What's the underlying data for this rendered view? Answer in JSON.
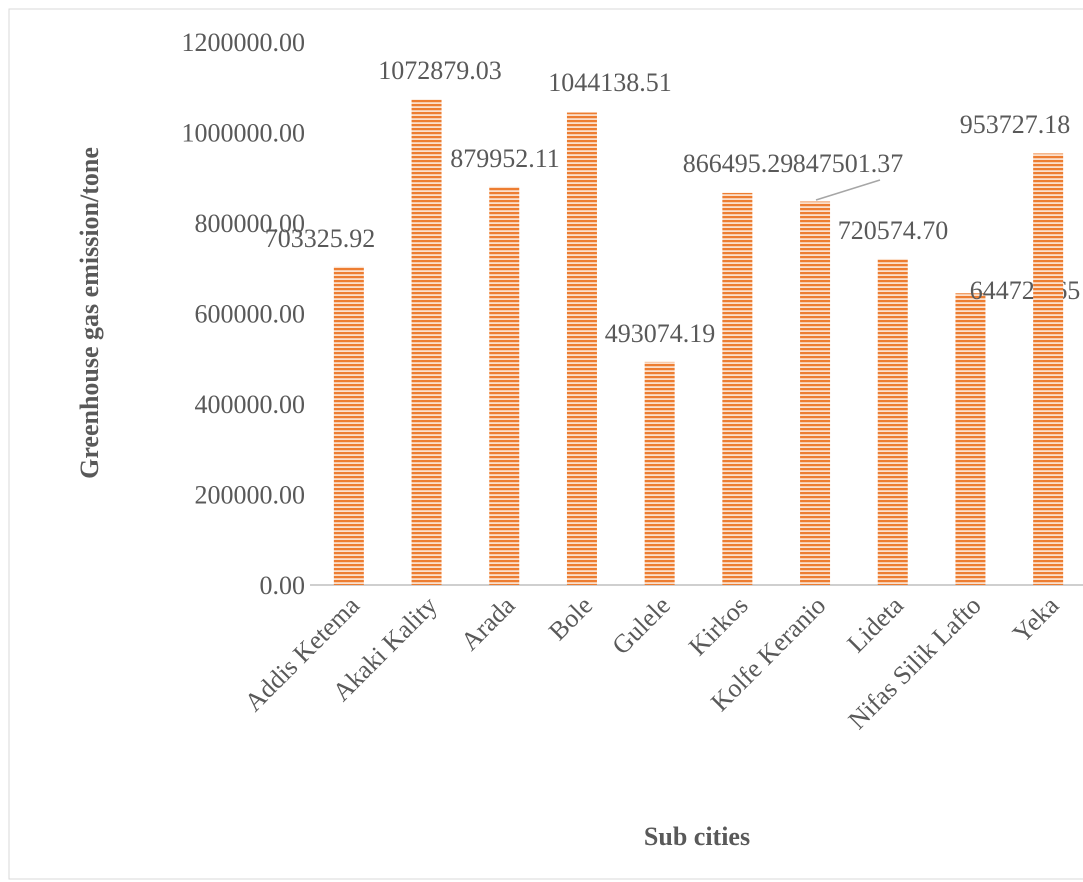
{
  "chart_data": {
    "type": "bar",
    "categories": [
      "Addis Ketema",
      "Akaki Kality",
      "Arada",
      "Bole",
      "Gulele",
      "Kirkos",
      "Kolfe Keranio",
      "Lideta",
      "Nifas Silik Lafto",
      "Yeka"
    ],
    "values": [
      703325.92,
      1072879.03,
      879952.11,
      1044138.51,
      493074.19,
      866495.29,
      847501.37,
      720574.7,
      644721.65,
      953727.18
    ],
    "value_labels": [
      "703325.92",
      "1072879.03",
      "879952.11",
      "1044138.51",
      "493074.19",
      "866495.29",
      "847501.37",
      "720574.70",
      "644721.65",
      "953727.18"
    ],
    "color": "#ed7d31",
    "x_label": "Sub cities",
    "y_label": "Greenhouse gas emission/tone",
    "ylim": [
      0,
      1200000
    ],
    "yticks": [
      {
        "value": 0,
        "label": "0.00"
      },
      {
        "value": 200000,
        "label": "200000.00"
      },
      {
        "value": 400000,
        "label": "400000.00"
      },
      {
        "value": 600000,
        "label": "600000.00"
      },
      {
        "value": 800000,
        "label": "800000.00"
      },
      {
        "value": 1000000,
        "label": "1000000.00"
      },
      {
        "value": 1200000,
        "label": "1200000.00"
      }
    ],
    "grid": false
  }
}
